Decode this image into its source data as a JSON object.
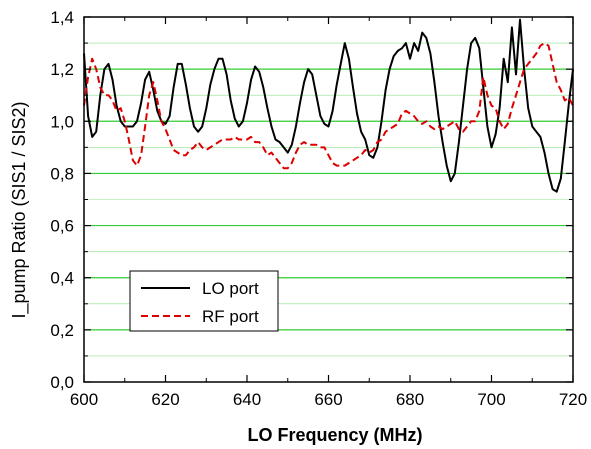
{
  "chart_data": {
    "type": "line",
    "xlabel": "LO Frequency (MHz)",
    "ylabel": "I_pump Ratio (SIS1 / SIS2)",
    "xlim": [
      600,
      720
    ],
    "ylim": [
      0.0,
      1.4
    ],
    "x_ticks": [
      "600",
      "620",
      "640",
      "660",
      "680",
      "700",
      "720"
    ],
    "y_ticks": [
      "0,0",
      "0,2",
      "0,4",
      "0,6",
      "0,8",
      "1,0",
      "1,2",
      "1,4"
    ],
    "grid": "horizontal green lines (major and minor)",
    "legend_position": "lower-left",
    "colors": {
      "grid": "#33cc33",
      "lo_port": "#000000",
      "rf_port": "#dd0000"
    },
    "series": [
      {
        "name": "LO port",
        "style": "solid",
        "x": [
          600,
          601,
          602,
          603,
          604,
          605,
          606,
          607,
          608,
          609,
          610,
          611,
          612,
          613,
          614,
          615,
          616,
          617,
          618,
          619,
          620,
          621,
          622,
          623,
          624,
          625,
          626,
          627,
          628,
          629,
          630,
          631,
          632,
          633,
          634,
          635,
          636,
          637,
          638,
          639,
          640,
          641,
          642,
          643,
          644,
          645,
          646,
          647,
          648,
          649,
          650,
          651,
          652,
          653,
          654,
          655,
          656,
          657,
          658,
          659,
          660,
          661,
          662,
          663,
          664,
          665,
          666,
          667,
          668,
          669,
          670,
          671,
          672,
          673,
          674,
          675,
          676,
          677,
          678,
          679,
          680,
          681,
          682,
          683,
          684,
          685,
          686,
          687,
          688,
          689,
          690,
          691,
          692,
          693,
          694,
          695,
          696,
          697,
          698,
          699,
          700,
          701,
          702,
          703,
          704,
          705,
          706,
          707,
          708,
          709,
          710,
          711,
          712,
          713,
          714,
          715,
          716,
          717,
          718,
          719,
          720
        ],
        "y": [
          1.26,
          1.02,
          0.94,
          0.96,
          1.1,
          1.2,
          1.22,
          1.16,
          1.06,
          1.0,
          0.98,
          0.98,
          0.98,
          1.0,
          1.07,
          1.16,
          1.19,
          1.12,
          1.04,
          1.0,
          0.99,
          1.02,
          1.13,
          1.22,
          1.22,
          1.14,
          1.05,
          0.98,
          0.96,
          0.98,
          1.05,
          1.14,
          1.2,
          1.24,
          1.24,
          1.18,
          1.08,
          1.01,
          0.98,
          1.0,
          1.07,
          1.16,
          1.21,
          1.19,
          1.13,
          1.05,
          0.98,
          0.93,
          0.92,
          0.9,
          0.88,
          0.91,
          0.98,
          1.07,
          1.15,
          1.2,
          1.18,
          1.1,
          1.02,
          0.99,
          0.98,
          1.04,
          1.14,
          1.22,
          1.3,
          1.24,
          1.13,
          1.03,
          0.96,
          0.93,
          0.87,
          0.86,
          0.9,
          1.0,
          1.12,
          1.2,
          1.25,
          1.27,
          1.28,
          1.3,
          1.24,
          1.3,
          1.27,
          1.34,
          1.32,
          1.26,
          1.15,
          1.02,
          0.92,
          0.83,
          0.77,
          0.8,
          0.92,
          1.06,
          1.2,
          1.3,
          1.32,
          1.28,
          1.13,
          0.98,
          0.9,
          0.95,
          1.05,
          1.24,
          1.15,
          1.36,
          1.18,
          1.39,
          1.2,
          1.05,
          0.98,
          0.96,
          0.94,
          0.88,
          0.8,
          0.74,
          0.73,
          0.78,
          0.92,
          1.07,
          1.2
        ]
      },
      {
        "name": "RF port",
        "style": "dashed",
        "x": [
          600,
          601,
          602,
          603,
          604,
          605,
          606,
          607,
          608,
          609,
          610,
          611,
          612,
          613,
          614,
          615,
          616,
          617,
          618,
          619,
          620,
          621,
          622,
          623,
          624,
          625,
          626,
          627,
          628,
          629,
          630,
          631,
          632,
          633,
          634,
          635,
          636,
          637,
          638,
          639,
          640,
          641,
          642,
          643,
          644,
          645,
          646,
          647,
          648,
          649,
          650,
          651,
          652,
          653,
          654,
          655,
          656,
          657,
          658,
          659,
          660,
          661,
          662,
          663,
          664,
          665,
          666,
          667,
          668,
          669,
          670,
          671,
          672,
          673,
          674,
          675,
          676,
          677,
          678,
          679,
          680,
          681,
          682,
          683,
          684,
          685,
          686,
          687,
          688,
          689,
          690,
          691,
          692,
          693,
          694,
          695,
          696,
          697,
          698,
          699,
          700,
          701,
          702,
          703,
          704,
          705,
          706,
          707,
          708,
          709,
          710,
          711,
          712,
          713,
          714,
          715,
          716,
          717,
          718,
          719,
          720
        ],
        "y": [
          1.06,
          1.17,
          1.24,
          1.2,
          1.13,
          1.1,
          1.1,
          1.08,
          1.04,
          1.05,
          1.0,
          0.93,
          0.85,
          0.83,
          0.87,
          0.98,
          1.1,
          1.15,
          1.08,
          1.0,
          0.97,
          0.93,
          0.89,
          0.88,
          0.87,
          0.87,
          0.89,
          0.9,
          0.92,
          0.9,
          0.89,
          0.9,
          0.91,
          0.92,
          0.93,
          0.93,
          0.93,
          0.94,
          0.93,
          0.93,
          0.93,
          0.94,
          0.92,
          0.92,
          0.9,
          0.87,
          0.88,
          0.86,
          0.84,
          0.82,
          0.82,
          0.84,
          0.88,
          0.91,
          0.92,
          0.91,
          0.91,
          0.91,
          0.9,
          0.9,
          0.87,
          0.84,
          0.83,
          0.83,
          0.83,
          0.84,
          0.85,
          0.86,
          0.87,
          0.89,
          0.88,
          0.89,
          0.92,
          0.93,
          0.96,
          0.97,
          0.98,
          0.99,
          1.03,
          1.04,
          1.03,
          1.02,
          1.0,
          0.99,
          1.0,
          0.98,
          0.97,
          0.98,
          0.97,
          0.98,
          0.99,
          1.0,
          0.97,
          0.96,
          0.98,
          1.0,
          1.0,
          1.04,
          1.17,
          1.1,
          1.06,
          1.05,
          1.0,
          0.97,
          0.99,
          1.05,
          1.1,
          1.15,
          1.2,
          1.22,
          1.24,
          1.26,
          1.29,
          1.3,
          1.29,
          1.22,
          1.15,
          1.12,
          1.08,
          1.09,
          1.06
        ]
      }
    ]
  }
}
